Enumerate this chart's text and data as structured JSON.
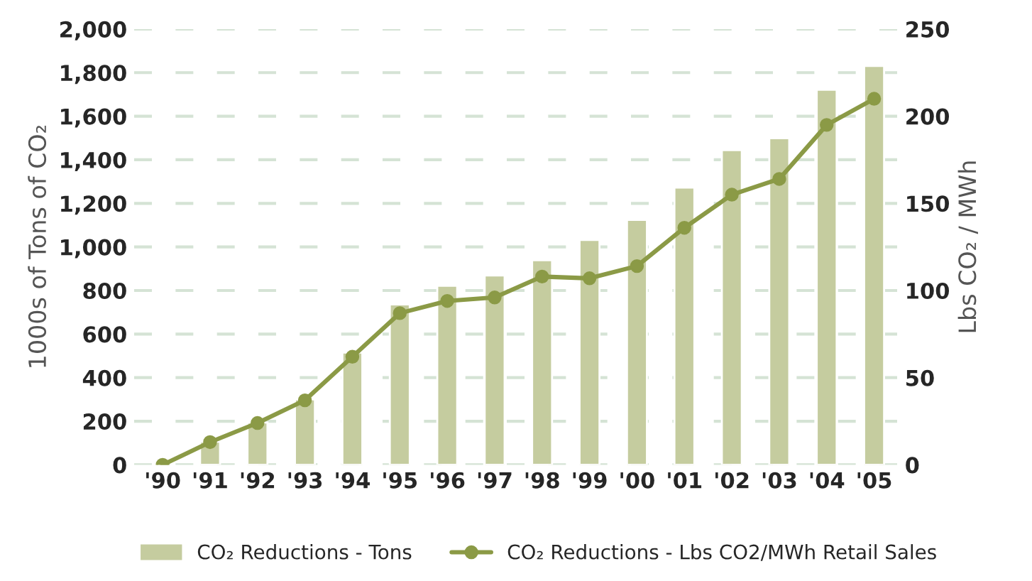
{
  "chart_data": {
    "type": "bar",
    "categories": [
      "'90",
      "'91",
      "'92",
      "'93",
      "'94",
      "'95",
      "'96",
      "'97",
      "'98",
      "'99",
      "'00",
      "'01",
      "'02",
      "'03",
      "'04",
      "'05"
    ],
    "ylabel": "1000s of Tons of CO₂",
    "y2label": "Lbs CO₂ / MWh",
    "ylim": [
      0,
      2000
    ],
    "yticks": [
      {
        "value": 0,
        "label": "0"
      },
      {
        "value": 200,
        "label": "200"
      },
      {
        "value": 400,
        "label": "400"
      },
      {
        "value": 600,
        "label": "600"
      },
      {
        "value": 800,
        "label": "800"
      },
      {
        "value": 1000,
        "label": "1,000"
      },
      {
        "value": 1200,
        "label": "1,200"
      },
      {
        "value": 1400,
        "label": "1,400"
      },
      {
        "value": 1600,
        "label": "1,600"
      },
      {
        "value": 1800,
        "label": "1,800"
      },
      {
        "value": 2000,
        "label": "2,000"
      }
    ],
    "y2lim": [
      0,
      250
    ],
    "y2ticks": [
      0,
      50,
      100,
      150,
      200,
      250
    ],
    "grid": "y",
    "legend": "bottom",
    "series": [
      {
        "name": "CO₂ Reductions - Tons",
        "color": "#c5cc9f",
        "values": [
          null,
          106,
          194,
          300,
          515,
          736,
          822,
          869,
          939,
          1032,
          1124,
          1272,
          1444,
          1499,
          1721,
          1831
        ]
      },
      {
        "name": "CO₂ Reductions - Lbs CO2/MWh Retail Sales",
        "type": "line",
        "axis": "y2",
        "color": "#8b9a46",
        "marker": "circle",
        "line_style": "solid",
        "values": [
          0,
          13,
          24,
          37,
          62,
          87,
          94,
          96,
          108,
          107,
          114,
          136,
          155,
          164,
          195,
          210
        ]
      }
    ]
  }
}
